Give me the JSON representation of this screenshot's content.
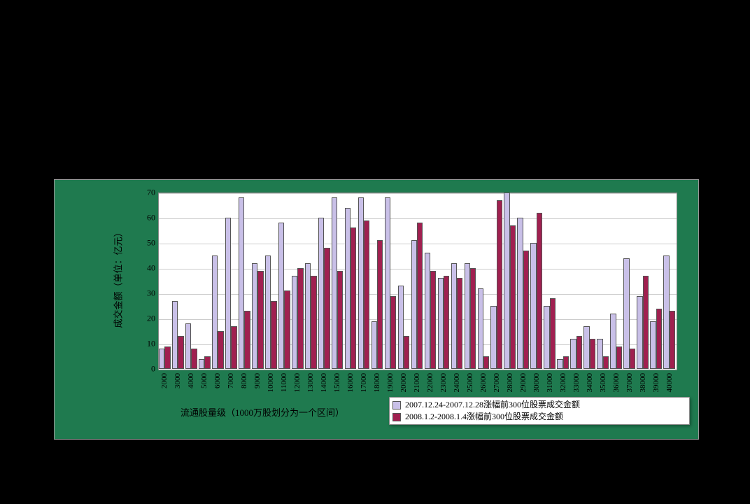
{
  "chart": {
    "type": "bar",
    "background_color": "#1f7a4f",
    "plot_background": "#ffffff",
    "grid_color": "#cccccc",
    "border_color": "#888888",
    "bar_border_color": "#555555",
    "ylabel": "成交金额（单位：亿元）",
    "ylabel_fontsize": 13,
    "xlabel": "流通股量级（1000万股划分为一个区间）",
    "xlabel_fontsize": 13,
    "tick_fontsize": 12,
    "ylim": [
      0,
      70
    ],
    "ytick_step": 10,
    "yticks": [
      0,
      10,
      20,
      30,
      40,
      50,
      60,
      70
    ],
    "categories": [
      "2000",
      "3000",
      "4000",
      "5000",
      "6000",
      "7000",
      "8000",
      "9000",
      "10000",
      "11000",
      "12000",
      "13000",
      "14000",
      "15000",
      "16000",
      "17000",
      "18000",
      "19000",
      "20000",
      "21000",
      "22000",
      "23000",
      "24000",
      "25000",
      "26000",
      "27000",
      "28000",
      "29000",
      "30000",
      "31000",
      "32000",
      "33000",
      "34000",
      "35000",
      "36000",
      "37000",
      "38000",
      "39000",
      "40000"
    ],
    "series": [
      {
        "name": "2007.12.24-2007.12.28涨幅前300位股票成交金额",
        "color": "#c9c0e8",
        "values": [
          8,
          27,
          18,
          4,
          45,
          60,
          68,
          42,
          45,
          58,
          37,
          42,
          60,
          68,
          64,
          68,
          19,
          68,
          33,
          51,
          46,
          36,
          42,
          42,
          32,
          25,
          70,
          60,
          50,
          25,
          4,
          12,
          17,
          12,
          22,
          44,
          29,
          19,
          45
        ]
      },
      {
        "name": "2008.1.2-2008.1.4涨幅前300位股票成交金额",
        "color": "#a02050",
        "values": [
          9,
          13,
          8,
          5,
          15,
          17,
          23,
          39,
          27,
          31,
          40,
          37,
          48,
          39,
          56,
          59,
          51,
          29,
          13,
          58,
          39,
          37,
          36,
          40,
          5,
          67,
          57,
          47,
          62,
          28,
          5,
          13,
          12,
          5,
          9,
          8,
          37,
          24,
          23
        ]
      }
    ],
    "legend_items": [
      "2007.12.24-2007.12.28涨幅前300位股票成交金额",
      "2008.1.2-2008.1.4涨幅前300位股票成交金额"
    ],
    "bar_group_width": 0.88,
    "xtick_rotation": -90
  }
}
